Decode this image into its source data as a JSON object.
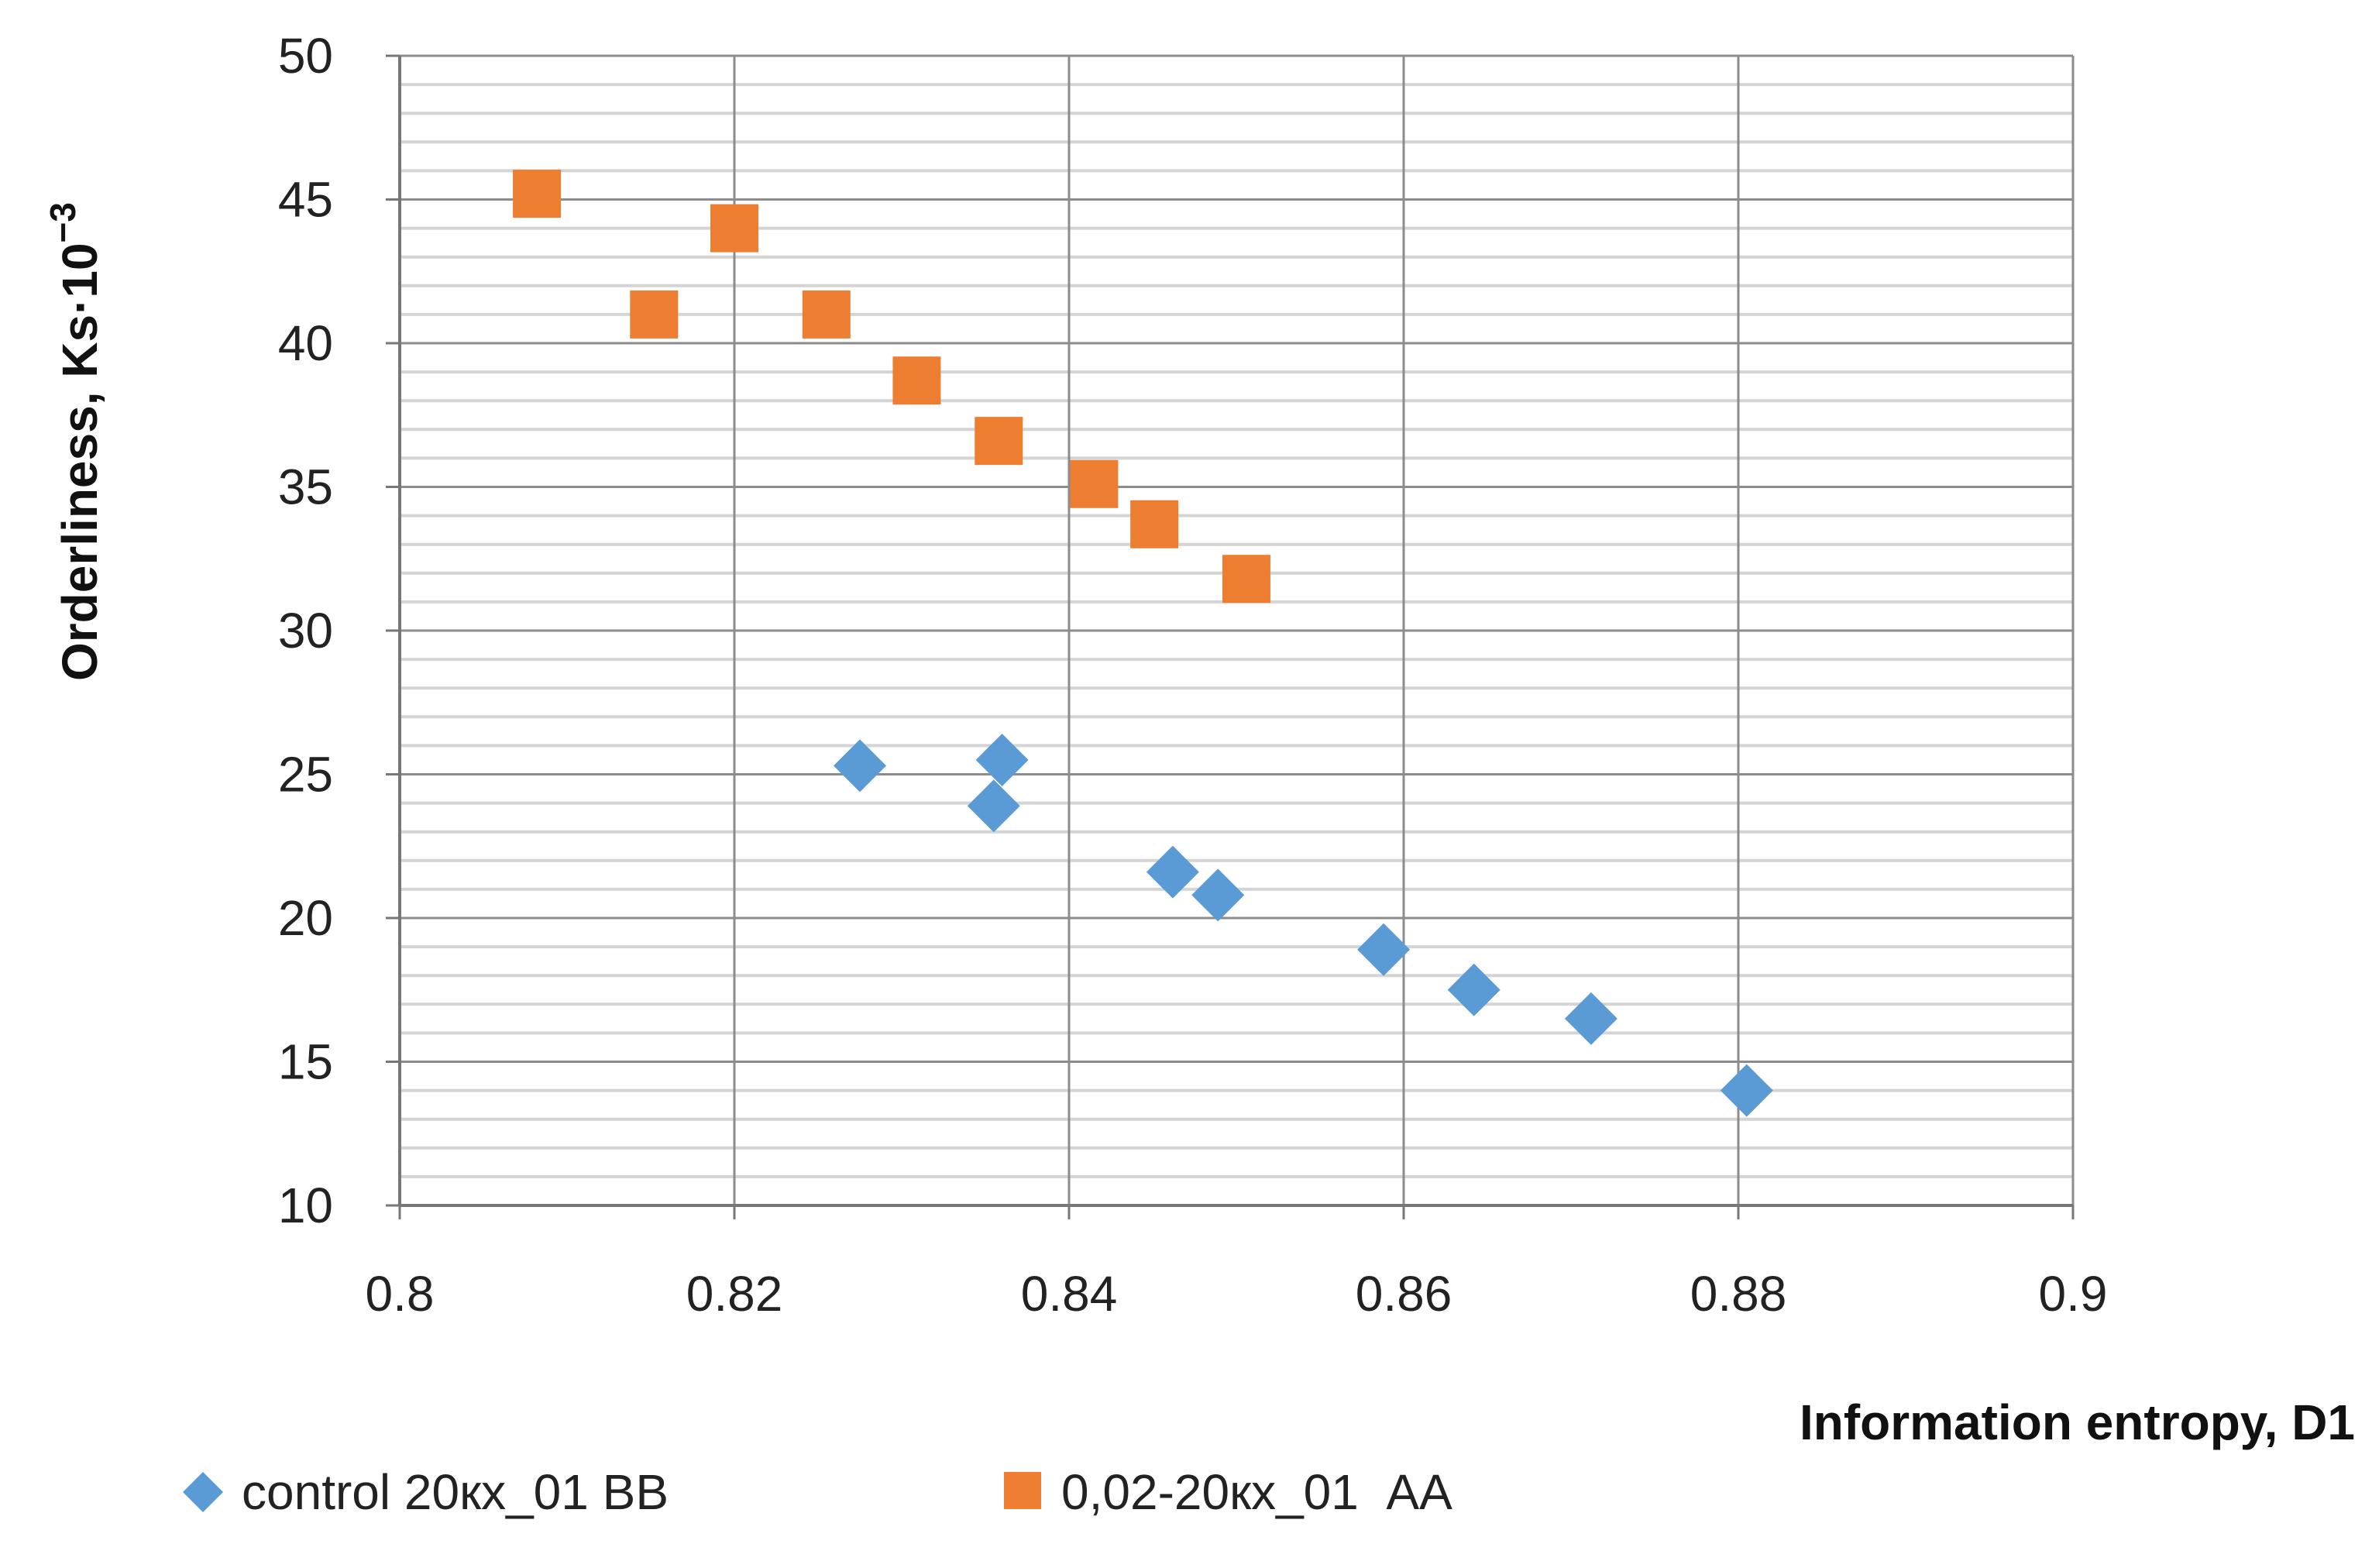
{
  "chart_data": {
    "type": "scatter",
    "title": "",
    "xlabel": "Information entropy, D1",
    "ylabel": "Orderliness, Ks·10",
    "ylabel_exponent": "−3",
    "xlim": [
      0.8,
      0.9
    ],
    "ylim": [
      10,
      50
    ],
    "x_major_step": 0.02,
    "y_major_step": 5,
    "y_minor_step": 1,
    "x_tick_labels": [
      "0.8",
      "0.82",
      "0.84",
      "0.86",
      "0.88",
      "0.9"
    ],
    "y_tick_labels": [
      "10",
      "15",
      "20",
      "25",
      "30",
      "35",
      "40",
      "45",
      "50"
    ],
    "grid": true,
    "legend_position": "bottom",
    "series": [
      {
        "name": "control 20кх_01 BB",
        "marker": "diamond",
        "color": "#5B9BD5",
        "points": [
          {
            "x": 0.8275,
            "y": 25.3
          },
          {
            "x": 0.836,
            "y": 25.5
          },
          {
            "x": 0.8355,
            "y": 23.9
          },
          {
            "x": 0.8462,
            "y": 21.6
          },
          {
            "x": 0.8489,
            "y": 20.8
          },
          {
            "x": 0.8588,
            "y": 18.9
          },
          {
            "x": 0.8642,
            "y": 17.5
          },
          {
            "x": 0.8712,
            "y": 16.5
          },
          {
            "x": 0.8805,
            "y": 14.0
          }
        ]
      },
      {
        "name": "0,02-20кх_01  AA",
        "marker": "square",
        "color": "#ED7D31",
        "points": [
          {
            "x": 0.8082,
            "y": 45.2
          },
          {
            "x": 0.8152,
            "y": 41.0
          },
          {
            "x": 0.82,
            "y": 44.0
          },
          {
            "x": 0.8255,
            "y": 41.0
          },
          {
            "x": 0.8309,
            "y": 38.7
          },
          {
            "x": 0.8358,
            "y": 36.6
          },
          {
            "x": 0.8415,
            "y": 35.1
          },
          {
            "x": 0.8451,
            "y": 33.7
          },
          {
            "x": 0.8506,
            "y": 31.8
          }
        ]
      }
    ]
  }
}
